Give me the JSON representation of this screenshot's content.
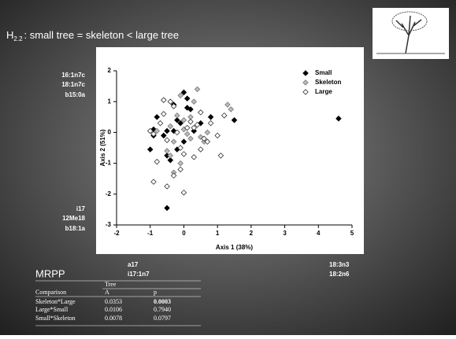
{
  "slide": {
    "title_main": "H",
    "title_sub": "2.2",
    "title_rest": ": small tree  =  skeleton  < large tree",
    "labels_upper_left": [
      "16:1n7c",
      "18:1n7c",
      "b15:0a"
    ],
    "labels_lower_left": [
      "i17",
      "12Me18",
      "b18:1a"
    ],
    "labels_bottom_left": [
      "a17",
      "i17:1n7"
    ],
    "labels_bottom_right": [
      "18:3n3",
      "18:2n6"
    ],
    "section": "MRPP"
  },
  "table": {
    "group": "Tree",
    "header": [
      "Comparison",
      "A",
      "p"
    ],
    "rows": [
      [
        "Skeleton*Large",
        "0.0353",
        "0.0003"
      ],
      [
        "Large*Small",
        "0.0106",
        "0.7940"
      ],
      [
        "Small*Skeleton",
        "0.0078",
        "0.0797"
      ]
    ]
  },
  "chart_data": {
    "type": "scatter",
    "x_label": "Axis 1 (38%)",
    "y_label": "Axis 2 (51%)",
    "xlim": [
      -2,
      5
    ],
    "ylim": [
      -3,
      2
    ],
    "xticks": [
      -2,
      -1,
      0,
      1,
      2,
      3,
      4,
      5
    ],
    "yticks": [
      -3,
      -2,
      -1,
      0,
      1,
      2
    ],
    "legend": "upper right",
    "series": [
      {
        "name": "Small",
        "color": "#000000",
        "marker": "filled",
        "x": [
          -1.0,
          -0.9,
          -0.8,
          -0.6,
          -0.5,
          -0.4,
          -0.3,
          -0.2,
          -0.1,
          0,
          0.1,
          0.2,
          -0.5,
          -0.3,
          0.3,
          0.5,
          0.8,
          1.5,
          4.6,
          -0.5,
          -0.9,
          0,
          -0.2,
          0.1
        ],
        "values": [
          -0.55,
          -0.1,
          0.5,
          -0.1,
          -0.75,
          -0.9,
          0.9,
          0.4,
          0.3,
          1.3,
          0.8,
          0.75,
          -2.45,
          0.05,
          0.05,
          0.3,
          0.5,
          0.4,
          0.45,
          0.05,
          0.1,
          -0.3,
          -0.55,
          1.1
        ]
      },
      {
        "name": "Skeleton",
        "color": "#777777",
        "marker": "gray",
        "x": [
          -0.8,
          -0.6,
          -0.5,
          -0.4,
          -0.3,
          -0.2,
          -0.1,
          0,
          0.1,
          0.2,
          0.3,
          0.4,
          0.5,
          0.7,
          1.3,
          1.4,
          -0.3,
          -0.1,
          0.2,
          0.6,
          -0.4,
          0
        ],
        "values": [
          0.05,
          1.05,
          -0.6,
          0.2,
          -0.3,
          0.55,
          1.2,
          0.1,
          -0.05,
          0.5,
          1.0,
          1.4,
          -0.15,
          0.0,
          0.9,
          0.75,
          -1.3,
          -1.0,
          -0.2,
          -0.3,
          -0.75,
          0.4
        ]
      },
      {
        "name": "Large",
        "color": "#333333",
        "marker": "open",
        "x": [
          -1.0,
          -0.9,
          -0.8,
          -0.7,
          -0.6,
          -0.5,
          -0.4,
          -0.3,
          -0.2,
          -0.1,
          0,
          0.1,
          0.2,
          0.3,
          0.4,
          0.5,
          0.6,
          0.7,
          0.8,
          1.0,
          1.1,
          1.2,
          -0.5,
          -0.3,
          -0.1,
          0,
          -0.9,
          -0.6,
          0.3,
          0.5
        ],
        "values": [
          0.05,
          -1.6,
          -0.95,
          0.3,
          1.05,
          -1.75,
          1.0,
          -1.4,
          0.0,
          -1.2,
          -1.95,
          0.15,
          0.35,
          -0.8,
          0.25,
          -0.55,
          -0.2,
          -0.3,
          0.3,
          -0.1,
          -0.75,
          0.55,
          -0.25,
          0.85,
          -0.5,
          -0.7,
          -0.05,
          0.6,
          0.15,
          0.65
        ]
      }
    ]
  }
}
